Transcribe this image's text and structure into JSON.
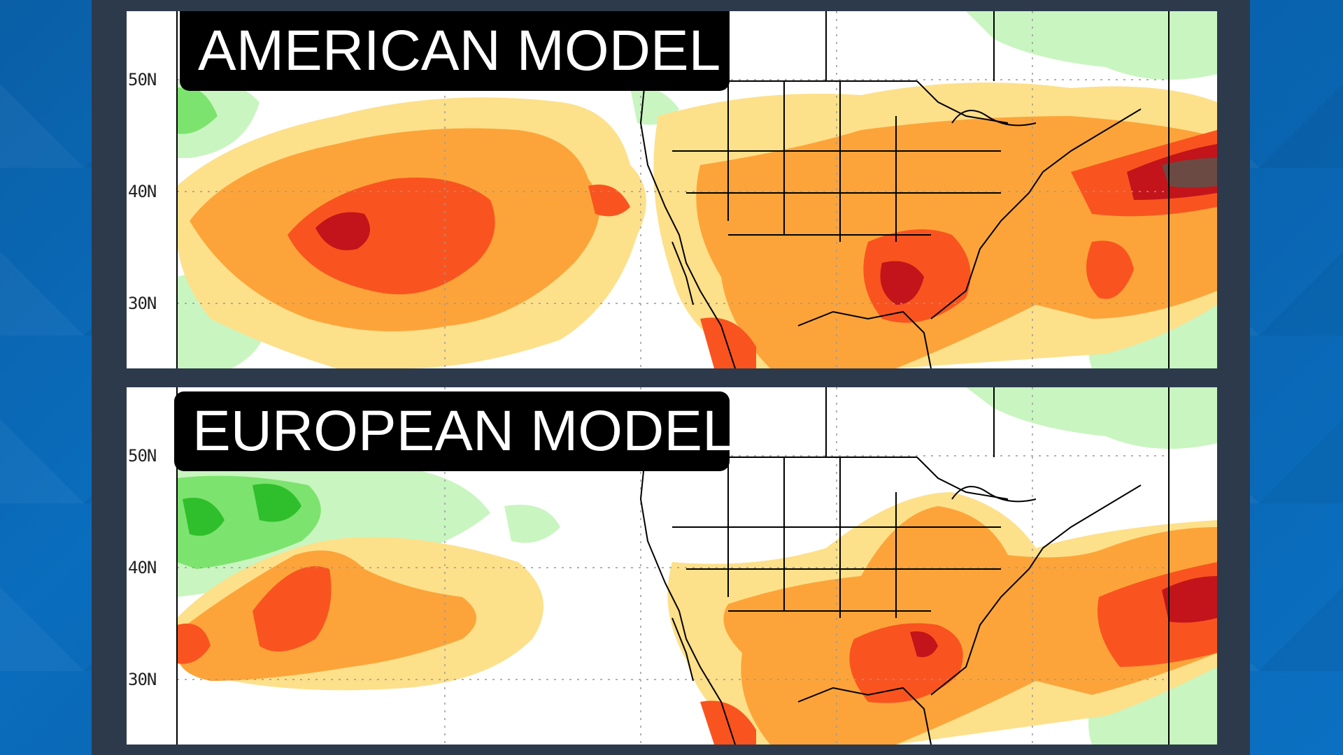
{
  "panels": [
    {
      "title": "AMERICAN MODEL",
      "lat_labels": [
        "50N",
        "40N",
        "30N"
      ]
    },
    {
      "title": "EUROPEAN MODEL",
      "lat_labels": [
        "50N",
        "40N",
        "30N"
      ]
    }
  ],
  "colors": {
    "frame": "#2d3a4c",
    "background_blue": "#0a66b3",
    "anomaly_light_yellow": "#fde08a",
    "anomaly_orange": "#fca43a",
    "anomaly_red_orange": "#f9541f",
    "anomaly_dark_red": "#c2141a",
    "anomaly_brown": "#6b4a44",
    "anomaly_light_green": "#c9f5c0",
    "anomaly_green": "#7de36f",
    "anomaly_dark_green": "#2fbf2c"
  }
}
